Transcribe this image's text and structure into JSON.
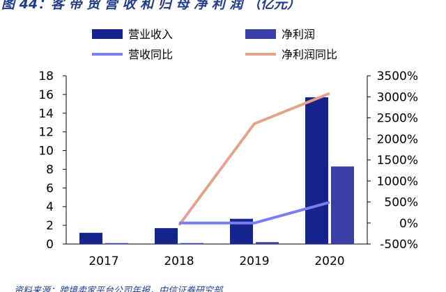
{
  "title": "图 44：客 带 贸 营 收 和 归 母 净 利 润 （亿元）",
  "source": "资料来源：跨境卖家平台公司年报，中信证券研究部",
  "colors": {
    "revenue": "#16238c",
    "profit": "#3b3ea6",
    "revenue_yoy": "#7b7ef0",
    "profit_yoy": "#e4a38c",
    "axis": "#000000",
    "title": "#1f3b8a"
  },
  "chart_data": {
    "type": "bar",
    "categories": [
      "2017",
      "2018",
      "2019",
      "2020"
    ],
    "y_left": {
      "range": [
        0,
        18
      ],
      "ticks": [
        "0",
        "2",
        "4",
        "6",
        "8",
        "10",
        "12",
        "14",
        "16",
        "18"
      ]
    },
    "y_right": {
      "range": [
        -500,
        3500
      ],
      "ticks": [
        "-500%",
        "0%",
        "500%",
        "1000%",
        "1500%",
        "2000%",
        "2500%",
        "3000%",
        "3500%"
      ]
    },
    "series": [
      {
        "name": "营业收入",
        "kind": "bar",
        "axis": "left",
        "values": [
          1.2,
          1.7,
          2.7,
          15.7
        ]
      },
      {
        "name": "净利润",
        "kind": "bar",
        "axis": "left",
        "values": [
          0.1,
          0.1,
          0.2,
          8.3
        ]
      },
      {
        "name": "营收同比",
        "kind": "line",
        "axis": "right",
        "values": [
          null,
          0,
          0,
          490
        ]
      },
      {
        "name": "净利润同比",
        "kind": "line",
        "axis": "right",
        "values": [
          null,
          -50,
          2360,
          3080
        ]
      }
    ],
    "legend_position": "top"
  }
}
